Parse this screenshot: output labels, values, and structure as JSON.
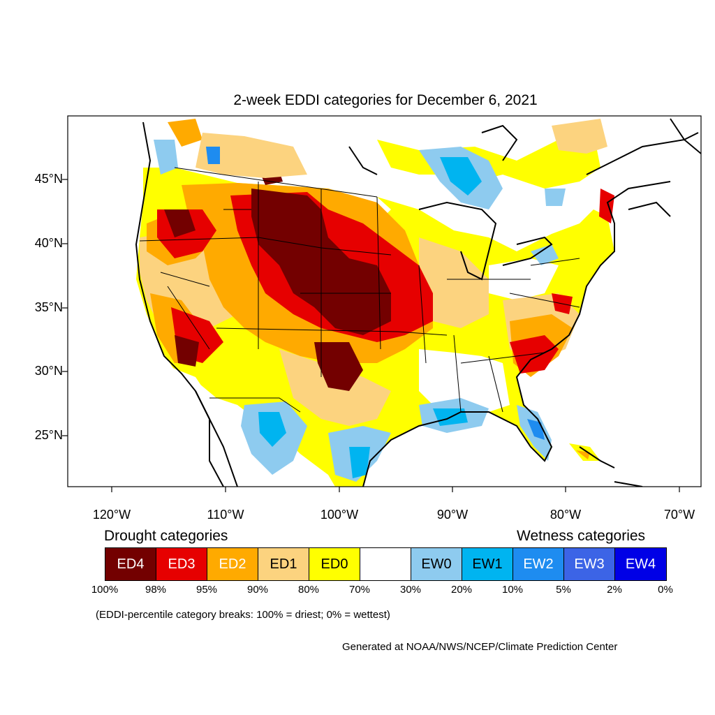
{
  "title": "2-week EDDI categories for December 6, 2021",
  "lat_labels": [
    "45°N",
    "40°N",
    "35°N",
    "30°N",
    "25°N"
  ],
  "lon_labels": [
    "120°W",
    "110°W",
    "100°W",
    "90°W",
    "80°W",
    "70°W"
  ],
  "legend": {
    "drought_heading": "Drought categories",
    "wetness_heading": "Wetness categories",
    "categories": [
      {
        "label": "ED4",
        "color": "#730000",
        "text_color": "#ffffff"
      },
      {
        "label": "ED3",
        "color": "#e60000",
        "text_color": "#ffffff"
      },
      {
        "label": "ED2",
        "color": "#ffaa00",
        "text_color": "#ffffff"
      },
      {
        "label": "ED1",
        "color": "#fcd37f",
        "text_color": "#000000"
      },
      {
        "label": "ED0",
        "color": "#ffff00",
        "text_color": "#000000"
      },
      {
        "label": "",
        "color": "#ffffff",
        "text_color": "#000000"
      },
      {
        "label": "EW0",
        "color": "#8ecbef",
        "text_color": "#000000"
      },
      {
        "label": "EW1",
        "color": "#00b4f0",
        "text_color": "#000000"
      },
      {
        "label": "EW2",
        "color": "#1e8cf0",
        "text_color": "#ffffff"
      },
      {
        "label": "EW3",
        "color": "#3c64e6",
        "text_color": "#ffffff"
      },
      {
        "label": "EW4",
        "color": "#0000e6",
        "text_color": "#ffffff"
      }
    ],
    "breaks": [
      "100%",
      "98%",
      "95%",
      "90%",
      "80%",
      "70%",
      "30%",
      "20%",
      "10%",
      "5%",
      "2%",
      "0%"
    ]
  },
  "note": "(EDDI-percentile category breaks: 100% = driest; 0% = wettest)",
  "credit": "Generated at NOAA/NWS/NCEP/Climate Prediction Center"
}
